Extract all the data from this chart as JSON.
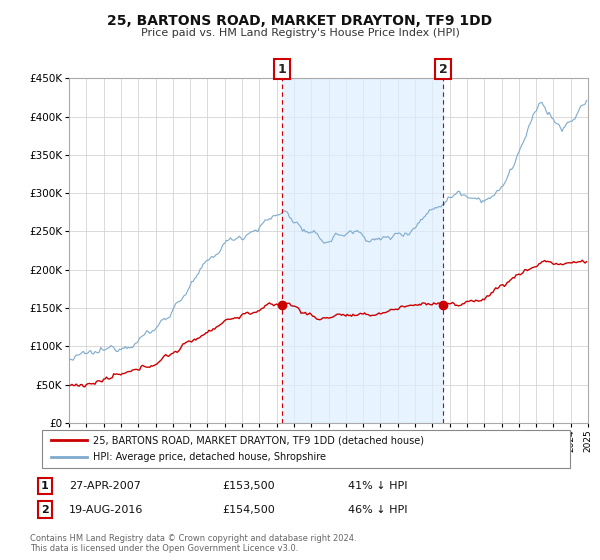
{
  "title": "25, BARTONS ROAD, MARKET DRAYTON, TF9 1DD",
  "subtitle": "Price paid vs. HM Land Registry's House Price Index (HPI)",
  "legend_line1": "25, BARTONS ROAD, MARKET DRAYTON, TF9 1DD (detached house)",
  "legend_line2": "HPI: Average price, detached house, Shropshire",
  "marker1_price": 153500,
  "marker1_x": 2007.32,
  "marker2_price": 154500,
  "marker2_x": 2016.63,
  "footer_line1": "Contains HM Land Registry data © Crown copyright and database right 2024.",
  "footer_line2": "This data is licensed under the Open Government Licence v3.0.",
  "red_color": "#cc0000",
  "blue_color": "#7faacc",
  "blue_fill_color": "#ddeeff",
  "grid_color": "#cccccc",
  "background_color": "#ffffff",
  "xlim": [
    1995,
    2025
  ],
  "ylim": [
    0,
    450000
  ],
  "yticks": [
    0,
    50000,
    100000,
    150000,
    200000,
    250000,
    300000,
    350000,
    400000,
    450000
  ],
  "ytick_labels": [
    "£0",
    "£50K",
    "£100K",
    "£150K",
    "£200K",
    "£250K",
    "£300K",
    "£350K",
    "£400K",
    "£450K"
  ],
  "row1_label": "1",
  "row1_date": "27-APR-2007",
  "row1_price": "£153,500",
  "row1_pct": "41% ↓ HPI",
  "row2_label": "2",
  "row2_date": "19-AUG-2016",
  "row2_price": "£154,500",
  "row2_pct": "46% ↓ HPI"
}
